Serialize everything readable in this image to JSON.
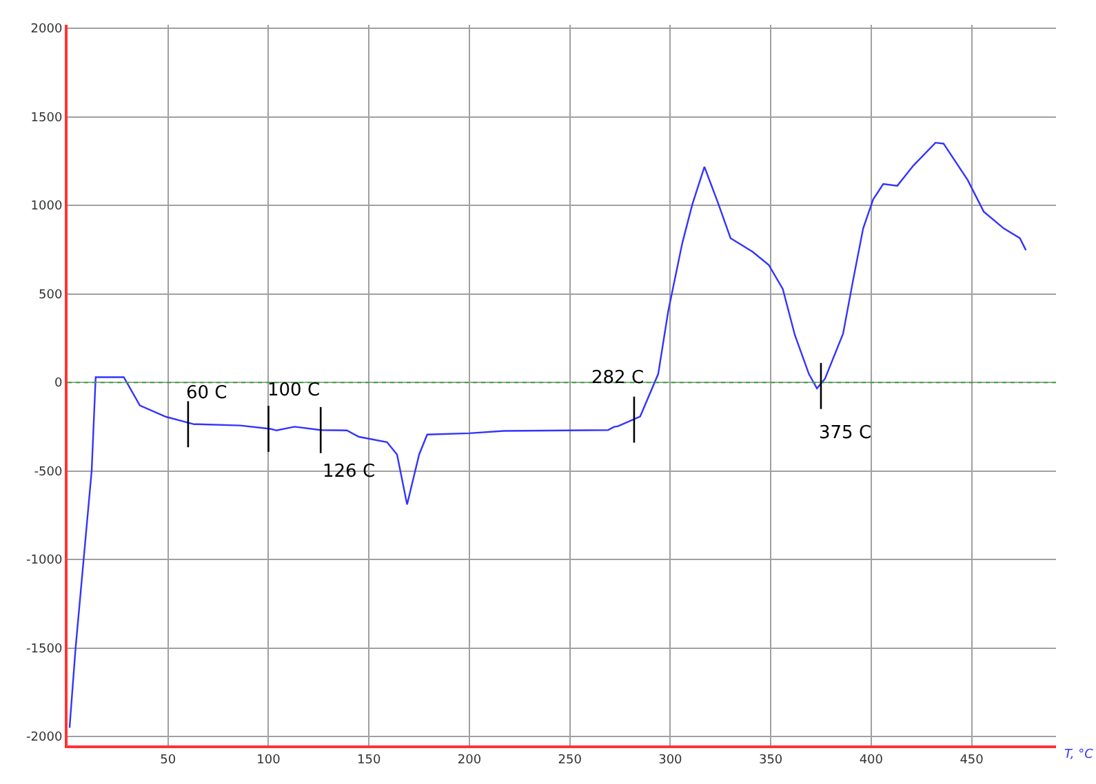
{
  "chart_data": {
    "type": "line",
    "xlabel": "T, °C",
    "series": [
      {
        "color": "#3333ff",
        "x": [
          1,
          4,
          12,
          14,
          28,
          36,
          49,
          63,
          65,
          86,
          101,
          104,
          113,
          126,
          139,
          145,
          159,
          164,
          169,
          175,
          179,
          200,
          217,
          269,
          272,
          274,
          285,
          294,
          299,
          306,
          311,
          317,
          324,
          330,
          341,
          349,
          356,
          362,
          369,
          373,
          377,
          386,
          391,
          396,
          401,
          406,
          413,
          421,
          432,
          436,
          448,
          456,
          466,
          474,
          477
        ],
        "values": [
          -1950,
          -1500,
          -500,
          30,
          30,
          -130,
          -194,
          -236,
          -236,
          -243,
          -262,
          -271,
          -250,
          -269,
          -271,
          -307,
          -337,
          -407,
          -689,
          -407,
          -294,
          -287,
          -274,
          -269,
          -251,
          -247,
          -192,
          48,
          404,
          788,
          1007,
          1218,
          1007,
          815,
          738,
          664,
          528,
          268,
          48,
          -34,
          21,
          275,
          578,
          870,
          1034,
          1121,
          1111,
          1225,
          1354,
          1349,
          1144,
          965,
          870,
          815,
          747
        ]
      }
    ],
    "xlim": [
      0,
      492
    ],
    "ylim": [
      -2050,
      2020
    ],
    "xticks": [
      50,
      100,
      150,
      200,
      250,
      300,
      350,
      400,
      450
    ],
    "yticks": [
      -2000,
      -1500,
      -1000,
      -500,
      0,
      500,
      1000,
      1500,
      2000
    ],
    "grid": true,
    "marker": "none",
    "line_style": "solid",
    "ref_lines": [
      {
        "axis": "y",
        "value": 0,
        "color": "#33aa33",
        "line_style": "dotted"
      }
    ],
    "annotations": [
      {
        "text": "60 C",
        "x": 60,
        "y": -236
      },
      {
        "text": "100 C",
        "x": 100,
        "y": -262
      },
      {
        "text": "126 C",
        "x": 126,
        "y": -269
      },
      {
        "text": "282 C",
        "x": 282,
        "y": -210
      },
      {
        "text": "375 C",
        "x": 375,
        "y": -20
      }
    ]
  }
}
